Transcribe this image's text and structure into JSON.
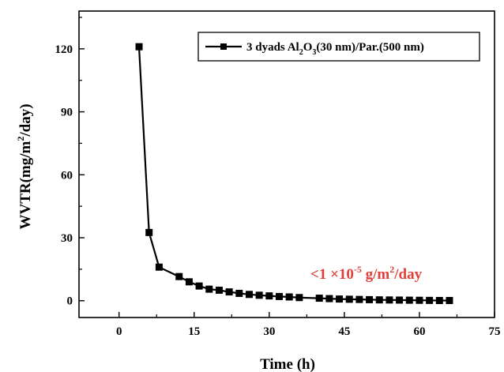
{
  "chart_data": {
    "type": "line",
    "xlabel": "Time (h)",
    "ylabel": {
      "main": "WVTR(mg/m",
      "sup": "2",
      "tail": "/day)"
    },
    "xlim": [
      -8,
      75
    ],
    "ylim": [
      -8,
      138
    ],
    "xticks": [
      0,
      15,
      30,
      45,
      60,
      75
    ],
    "yticks": [
      0,
      30,
      60,
      90,
      120
    ],
    "series": [
      {
        "name": {
          "pre": "3 dyads Al",
          "sub1": "2",
          "mid": "O",
          "sub2": "3",
          "post": "(30 nm)/Par.(500 nm)"
        },
        "color": "#000000",
        "marker": "square",
        "x": [
          4,
          6,
          8,
          12,
          14,
          16,
          18,
          20,
          22,
          24,
          26,
          28,
          30,
          32,
          34,
          36,
          40,
          42,
          44,
          46,
          48,
          50,
          52,
          54,
          56,
          58,
          60,
          62,
          64,
          66
        ],
        "y": [
          121,
          32.5,
          16,
          11.5,
          9,
          7,
          5.5,
          5,
          4.2,
          3.5,
          3,
          2.6,
          2.3,
          2,
          1.8,
          1.5,
          1.2,
          1,
          0.8,
          0.7,
          0.6,
          0.5,
          0.4,
          0.35,
          0.3,
          0.25,
          0.2,
          0.15,
          0.1,
          0.1
        ]
      }
    ],
    "annotation": {
      "text": {
        "pre": "<1 ×10",
        "sup1": "-5",
        "mid": " g/m",
        "sup2": "2",
        "post": "/day"
      },
      "color": "#e0403a"
    },
    "legend_position": "top-right",
    "grid": false
  }
}
